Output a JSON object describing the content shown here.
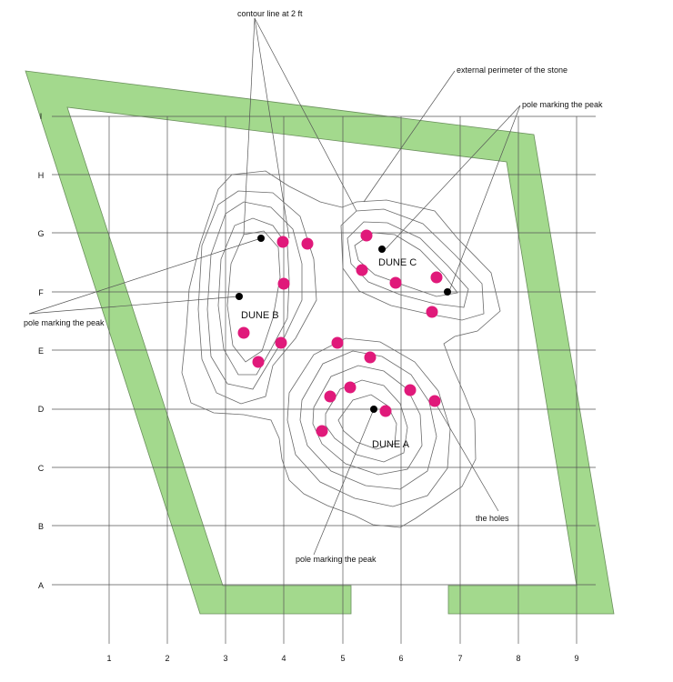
{
  "grid": {
    "columns": [
      "1",
      "2",
      "3",
      "4",
      "5",
      "6",
      "7",
      "8",
      "9"
    ],
    "rows": [
      "A",
      "B",
      "C",
      "D",
      "E",
      "F",
      "G",
      "H",
      "I"
    ]
  },
  "labels": {
    "contour": "contour line at 2 ft",
    "perimeter": "external perimeter of the stone",
    "pole_top_right": "pole marking the peak",
    "pole_left": "pole marking the peak",
    "pole_bottom": "pole marking the peak",
    "holes": "the holes"
  },
  "dunes": {
    "a": "DUNE A",
    "b": "DUNE B",
    "c": "DUNE C"
  },
  "colors": {
    "wall_fill": "#a3d98d",
    "hole": "#e0197a",
    "pole": "#000000",
    "contour": "#6a6a6a"
  }
}
